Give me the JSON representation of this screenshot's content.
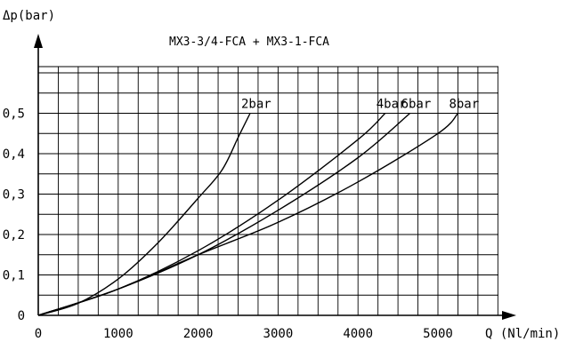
{
  "chart_data": {
    "type": "line",
    "title": "MX3-3/4-FCA + MX3-1-FCA",
    "xlabel": "Q (Nl/min)",
    "ylabel": "Δp(bar)",
    "xlim": [
      0,
      6000
    ],
    "ylim": [
      0,
      0.6
    ],
    "x_ticks": [
      0,
      1000,
      2000,
      3000,
      4000,
      5000
    ],
    "x_tick_labels": [
      "0",
      "1000",
      "2000",
      "3000",
      "4000",
      "5000"
    ],
    "y_ticks": [
      0,
      0.1,
      0.2,
      0.3,
      0.4,
      0.5
    ],
    "y_tick_labels": [
      "0",
      "0,1",
      "0,2",
      "0,3",
      "0,4",
      "0,5"
    ],
    "grid": true,
    "legend": "curve labels at line ends",
    "series": [
      {
        "name": "2bar",
        "x": [
          0,
          500,
          1000,
          1500,
          2000,
          2300,
          2500,
          2650
        ],
        "y": [
          0,
          0.03,
          0.09,
          0.18,
          0.29,
          0.36,
          0.44,
          0.5
        ]
      },
      {
        "name": "4bar",
        "x": [
          0,
          1000,
          2000,
          3000,
          4000,
          4340
        ],
        "y": [
          0,
          0.065,
          0.16,
          0.285,
          0.435,
          0.5
        ]
      },
      {
        "name": "6bar",
        "x": [
          0,
          1000,
          2000,
          3000,
          4000,
          4650
        ],
        "y": [
          0,
          0.065,
          0.15,
          0.26,
          0.39,
          0.5
        ]
      },
      {
        "name": "8bar",
        "x": [
          0,
          1000,
          2000,
          3000,
          4000,
          5000,
          5250
        ],
        "y": [
          0,
          0.065,
          0.15,
          0.23,
          0.33,
          0.45,
          0.5
        ]
      }
    ]
  }
}
